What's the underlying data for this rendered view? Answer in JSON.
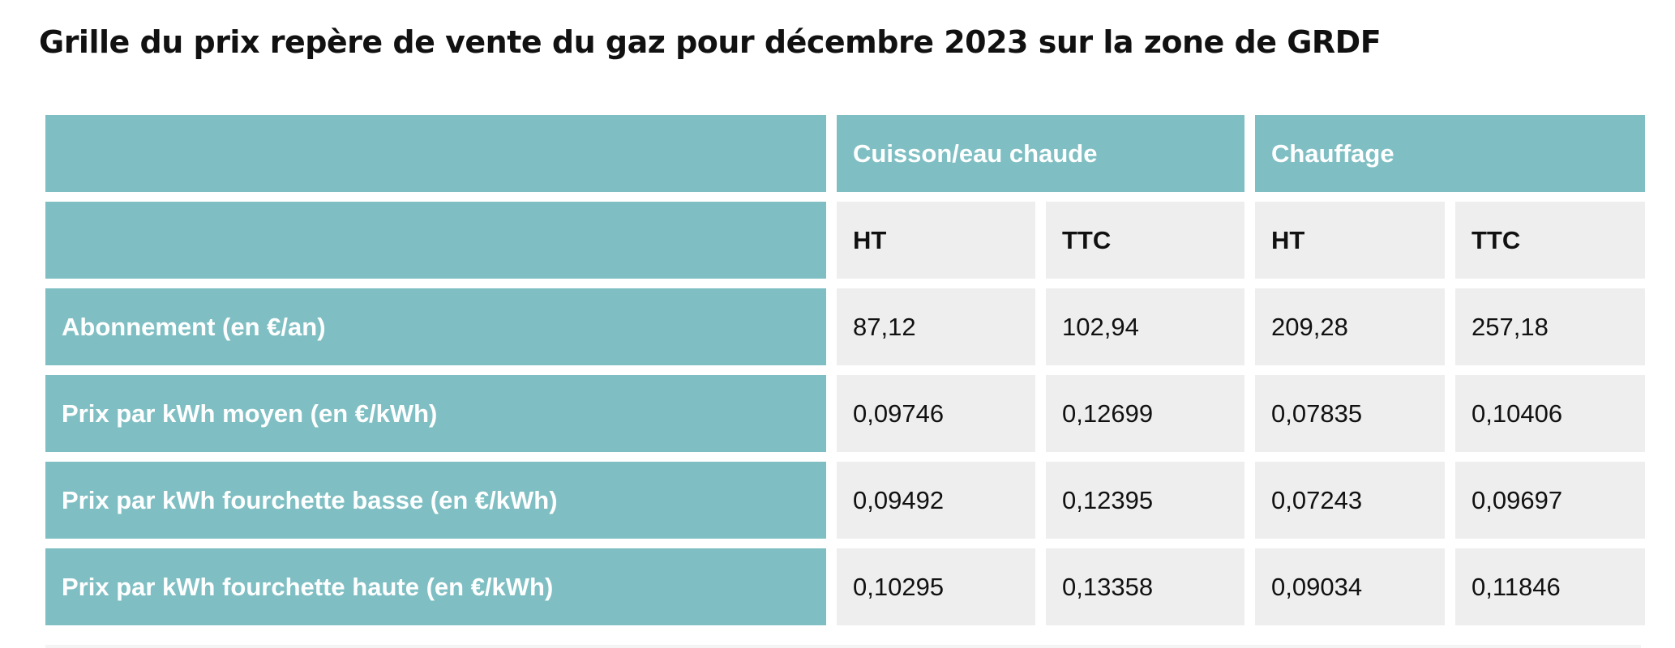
{
  "title": "Grille du prix repère de vente du gaz pour décembre 2023 sur la zone de GRDF",
  "table": {
    "groups": [
      "Cuisson/eau chaude",
      "Chauffage"
    ],
    "subheaders": [
      "HT",
      "TTC",
      "HT",
      "TTC"
    ],
    "rows": [
      {
        "label": "Abonnement (en €/an)",
        "values": [
          "87,12",
          "102,94",
          "209,28",
          "257,18"
        ]
      },
      {
        "label": "Prix par kWh moyen (en €/kWh)",
        "values": [
          "0,09746",
          "0,12699",
          "0,07835",
          "0,10406"
        ]
      },
      {
        "label": "Prix par kWh fourchette basse (en €/kWh)",
        "values": [
          "0,09492",
          "0,12395",
          "0,07243",
          "0,09697"
        ]
      },
      {
        "label": "Prix par kWh fourchette haute (en €/kWh)",
        "values": [
          "0,10295",
          "0,13358",
          "0,09034",
          "0,11846"
        ]
      }
    ]
  },
  "colors": {
    "header_teal": "#7fbfc3",
    "cell_grey": "#eeeeee"
  }
}
